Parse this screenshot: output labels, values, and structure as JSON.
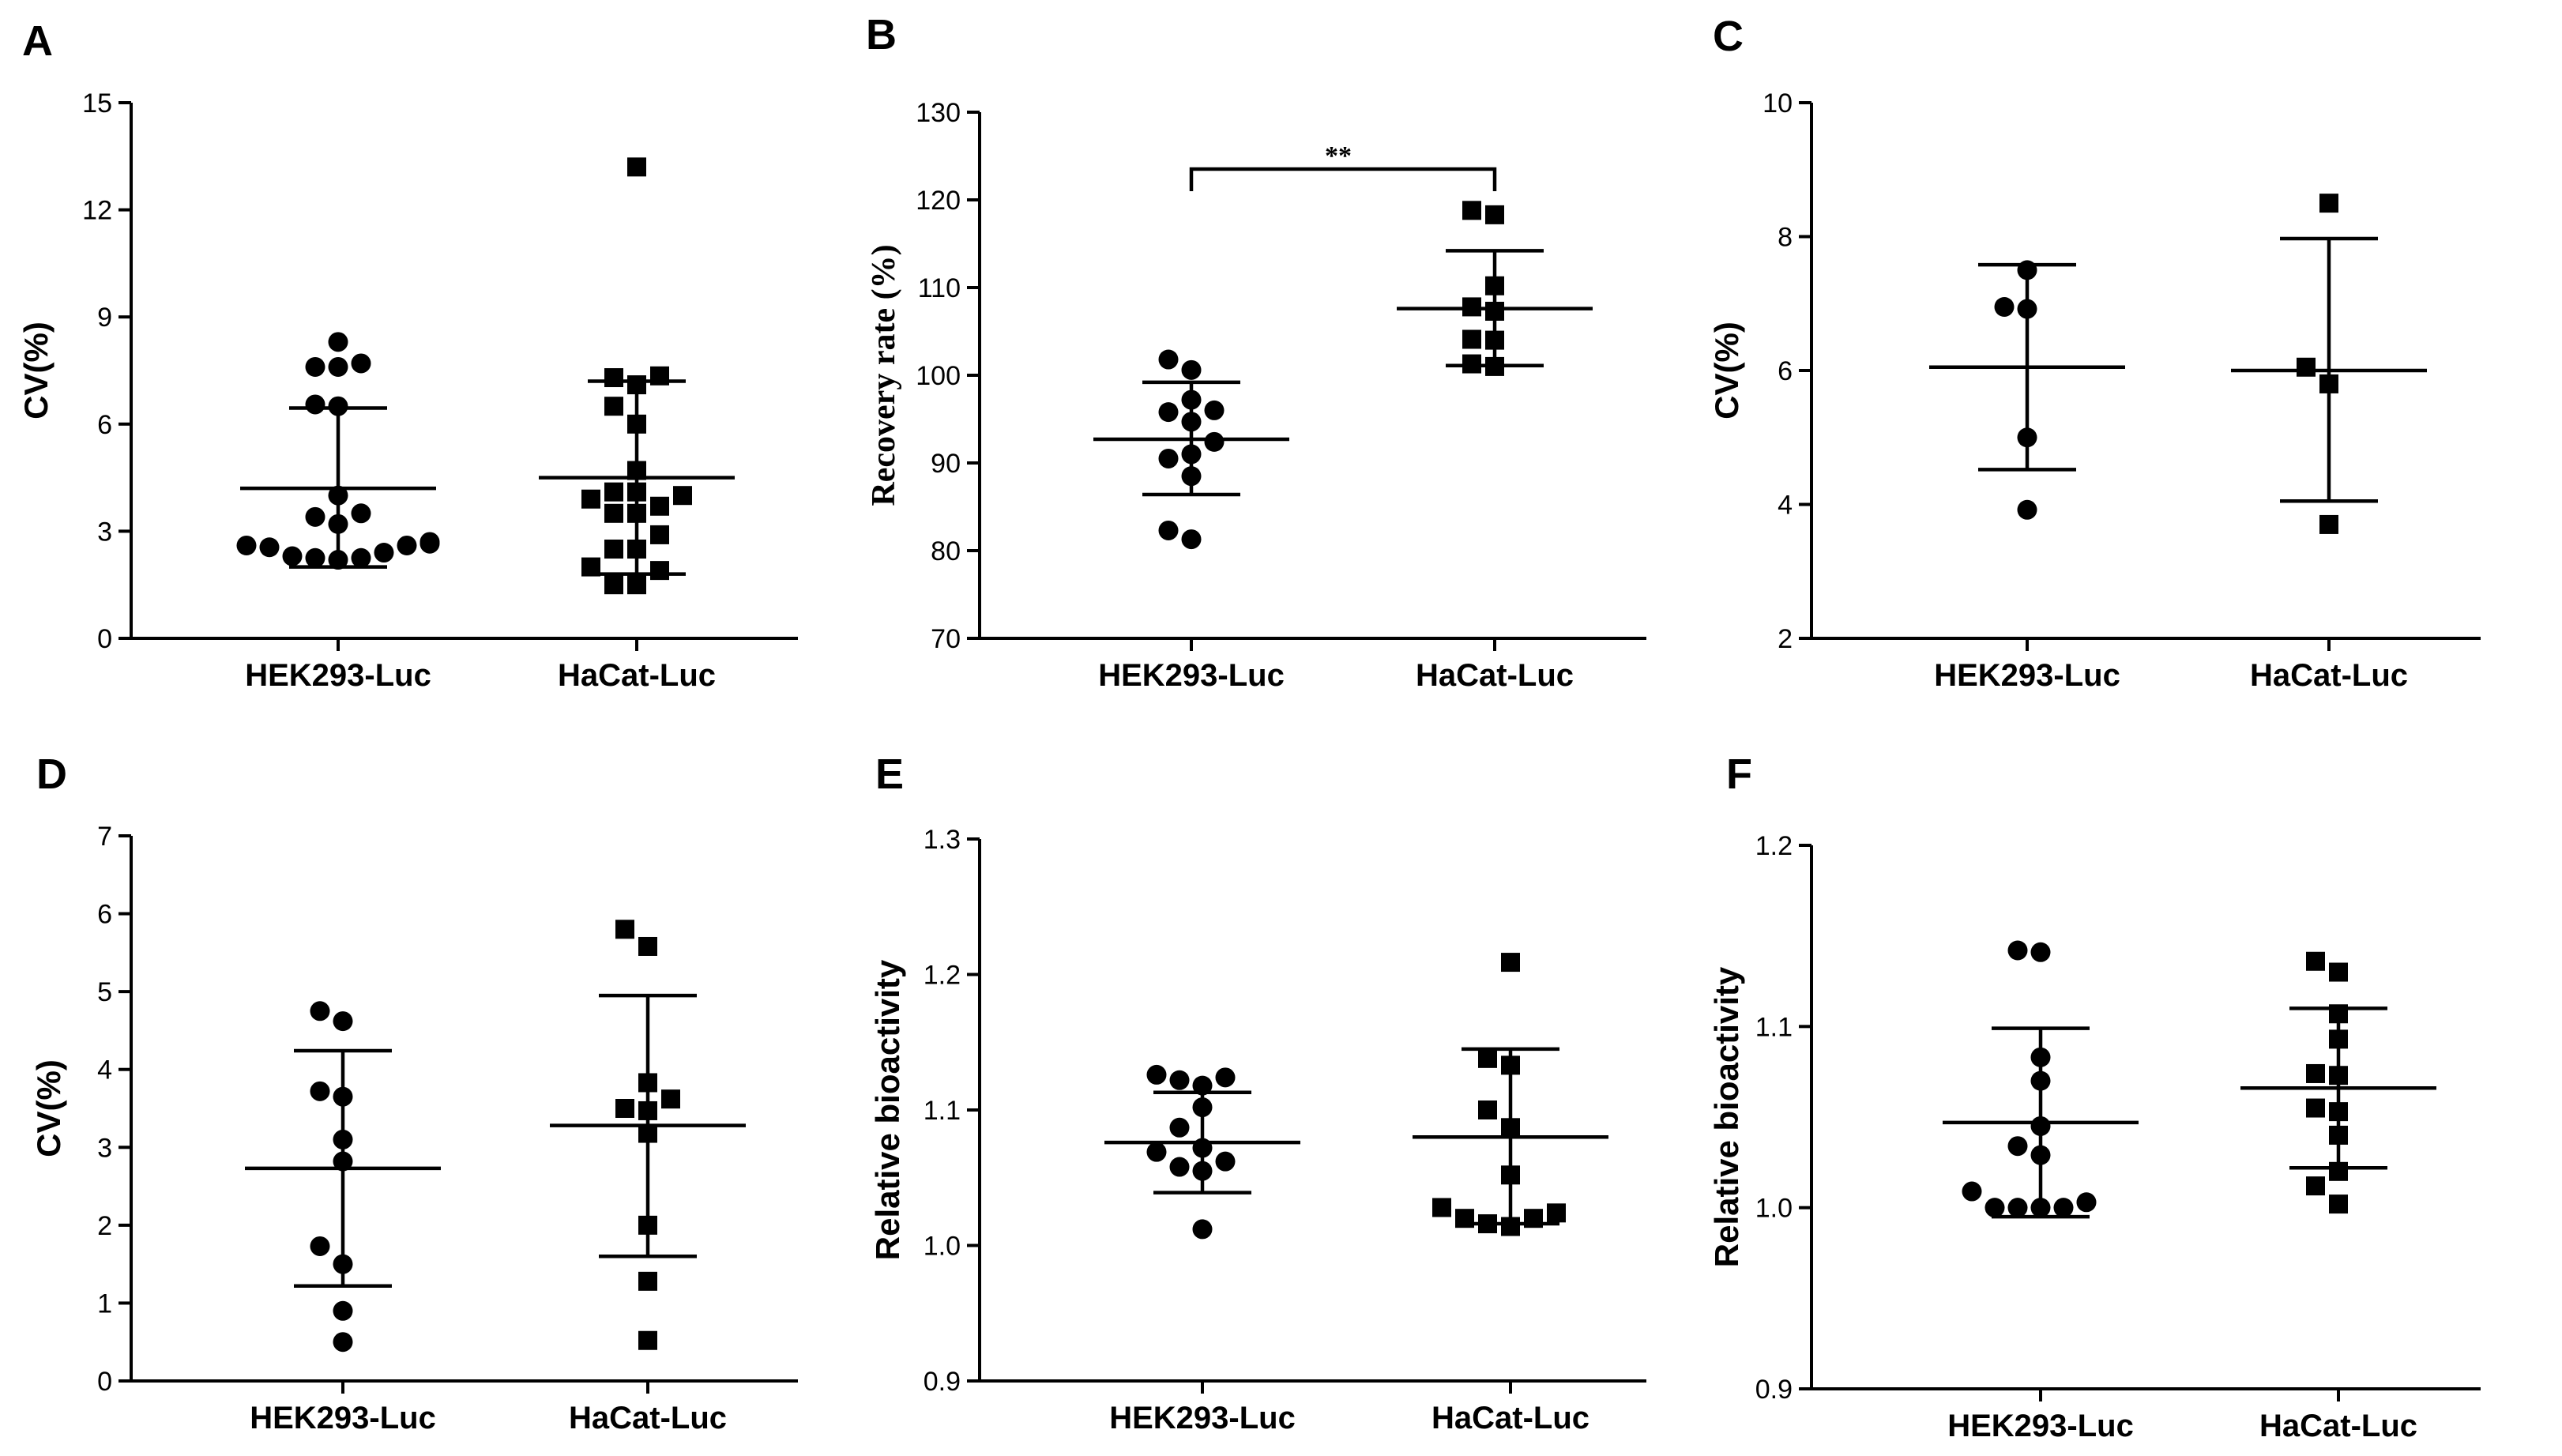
{
  "chart_data": [
    {
      "panel": "A",
      "type": "scatter",
      "ylabel": "CV(%)",
      "ylabel_style": "sans",
      "ylim": [
        0,
        15
      ],
      "yticks": [
        0,
        3,
        6,
        9,
        12,
        15
      ],
      "ytick_labels": [
        "0",
        "3",
        "6",
        "9",
        "12",
        "15"
      ],
      "categories": [
        "HEK293-Luc",
        "HaCat-Luc"
      ],
      "groups": [
        {
          "name": "HEK293-Luc",
          "marker": "circle",
          "mean": 4.2,
          "sd_low": 2.0,
          "sd_high": 6.45,
          "points": [
            8.3,
            7.7,
            7.6,
            7.6,
            6.5,
            6.55,
            4.0,
            3.5,
            3.4,
            3.2,
            2.6,
            2.6,
            2.55,
            2.7,
            2.65,
            2.4,
            2.3,
            2.25,
            2.25,
            2.2
          ]
        },
        {
          "name": "HaCat-Luc",
          "marker": "square",
          "mean": 4.5,
          "sd_low": 1.8,
          "sd_high": 7.2,
          "points": [
            13.2,
            7.3,
            7.35,
            7.1,
            6.5,
            6.0,
            4.7,
            4.1,
            4.1,
            4.0,
            3.9,
            3.7,
            3.5,
            3.5,
            2.9,
            2.5,
            2.5,
            2.0,
            1.9,
            1.5,
            1.5
          ]
        }
      ]
    },
    {
      "panel": "B",
      "type": "scatter",
      "ylabel": "Recovery rate (%)",
      "ylabel_style": "serif",
      "ylim": [
        70,
        130
      ],
      "yticks": [
        70,
        80,
        90,
        100,
        110,
        120,
        130
      ],
      "ytick_labels": [
        "70",
        "80",
        "90",
        "100",
        "110",
        "120",
        "130"
      ],
      "categories": [
        "HEK293-Luc",
        "HaCat-Luc"
      ],
      "significance": "**",
      "groups": [
        {
          "name": "HEK293-Luc",
          "marker": "circle",
          "mean": 92.7,
          "sd_low": 86.4,
          "sd_high": 99.2,
          "points": [
            101.8,
            100.6,
            97.2,
            96.0,
            95.8,
            94.7,
            92.4,
            91.0,
            90.5,
            88.5,
            82.3,
            81.3
          ]
        },
        {
          "name": "HaCat-Luc",
          "marker": "square",
          "mean": 107.6,
          "sd_low": 101.1,
          "sd_high": 114.2,
          "points": [
            118.8,
            118.3,
            110.2,
            107.8,
            107.3,
            104.1,
            104.0,
            101.0,
            101.3
          ]
        }
      ]
    },
    {
      "panel": "C",
      "type": "scatter",
      "ylabel": "CV(%)",
      "ylabel_style": "sans",
      "ylim": [
        2,
        10
      ],
      "yticks": [
        2,
        4,
        6,
        8,
        10
      ],
      "ytick_labels": [
        "2",
        "4",
        "6",
        "8",
        "10"
      ],
      "categories": [
        "HEK293-Luc",
        "HaCat-Luc"
      ],
      "groups": [
        {
          "name": "HEK293-Luc",
          "marker": "circle",
          "mean": 6.05,
          "sd_low": 4.52,
          "sd_high": 7.58,
          "points": [
            7.5,
            6.95,
            6.92,
            5.0,
            3.92
          ]
        },
        {
          "name": "HaCat-Luc",
          "marker": "square",
          "mean": 6.0,
          "sd_low": 4.05,
          "sd_high": 7.97,
          "points": [
            8.5,
            6.05,
            5.8,
            3.7
          ]
        }
      ]
    },
    {
      "panel": "D",
      "type": "scatter",
      "ylabel": "CV(%)",
      "ylabel_style": "sans",
      "ylim": [
        0,
        7
      ],
      "yticks": [
        0,
        1,
        2,
        3,
        4,
        5,
        6,
        7
      ],
      "ytick_labels": [
        "0",
        "1",
        "2",
        "3",
        "4",
        "5",
        "6",
        "7"
      ],
      "categories": [
        "HEK293-Luc",
        "HaCat-Luc"
      ],
      "groups": [
        {
          "name": "HEK293-Luc",
          "marker": "circle",
          "mean": 2.73,
          "sd_low": 1.22,
          "sd_high": 4.24,
          "points": [
            4.75,
            4.62,
            3.65,
            3.72,
            3.1,
            2.82,
            1.73,
            1.5,
            0.9,
            0.5
          ]
        },
        {
          "name": "HaCat-Luc",
          "marker": "square",
          "mean": 3.28,
          "sd_low": 1.6,
          "sd_high": 4.95,
          "points": [
            5.8,
            5.58,
            3.83,
            3.62,
            3.5,
            3.47,
            3.18,
            2.0,
            1.28,
            0.52
          ]
        }
      ]
    },
    {
      "panel": "E",
      "type": "scatter",
      "ylabel": "Relative bioactivity",
      "ylabel_style": "sans",
      "ylim": [
        0.9,
        1.3
      ],
      "yticks": [
        0.9,
        1.0,
        1.1,
        1.2,
        1.3
      ],
      "ytick_labels": [
        "0.9",
        "1.0",
        "1.1",
        "1.2",
        "1.3"
      ],
      "categories": [
        "HEK293-Luc",
        "HaCat-Luc"
      ],
      "groups": [
        {
          "name": "HEK293-Luc",
          "marker": "circle",
          "mean": 1.076,
          "sd_low": 1.039,
          "sd_high": 1.113,
          "points": [
            1.126,
            1.124,
            1.122,
            1.118,
            1.102,
            1.087,
            1.072,
            1.069,
            1.062,
            1.058,
            1.055,
            1.012
          ]
        },
        {
          "name": "HaCat-Luc",
          "marker": "square",
          "mean": 1.08,
          "sd_low": 1.016,
          "sd_high": 1.145,
          "points": [
            1.209,
            1.138,
            1.133,
            1.1,
            1.087,
            1.052,
            1.028,
            1.024,
            1.02,
            1.02,
            1.016,
            1.014
          ]
        }
      ]
    },
    {
      "panel": "F",
      "type": "scatter",
      "ylabel": "Relative bioactivity",
      "ylabel_style": "sans",
      "ylim": [
        0.9,
        1.2
      ],
      "yticks": [
        0.9,
        1.0,
        1.1,
        1.2
      ],
      "ytick_labels": [
        "0.9",
        "1.0",
        "1.1",
        "1.2"
      ],
      "categories": [
        "HEK293-Luc",
        "HaCat-Luc"
      ],
      "groups": [
        {
          "name": "HEK293-Luc",
          "marker": "circle",
          "mean": 1.047,
          "sd_low": 0.995,
          "sd_high": 1.099,
          "points": [
            1.141,
            1.142,
            1.083,
            1.07,
            1.045,
            1.034,
            1.029,
            1.009,
            1.0,
            1.0,
            1.0,
            1.0,
            1.003
          ]
        },
        {
          "name": "HaCat-Luc",
          "marker": "square",
          "mean": 1.066,
          "sd_low": 1.022,
          "sd_high": 1.11,
          "points": [
            1.136,
            1.13,
            1.107,
            1.093,
            1.074,
            1.073,
            1.055,
            1.053,
            1.04,
            1.02,
            1.012,
            1.002
          ]
        }
      ]
    }
  ]
}
